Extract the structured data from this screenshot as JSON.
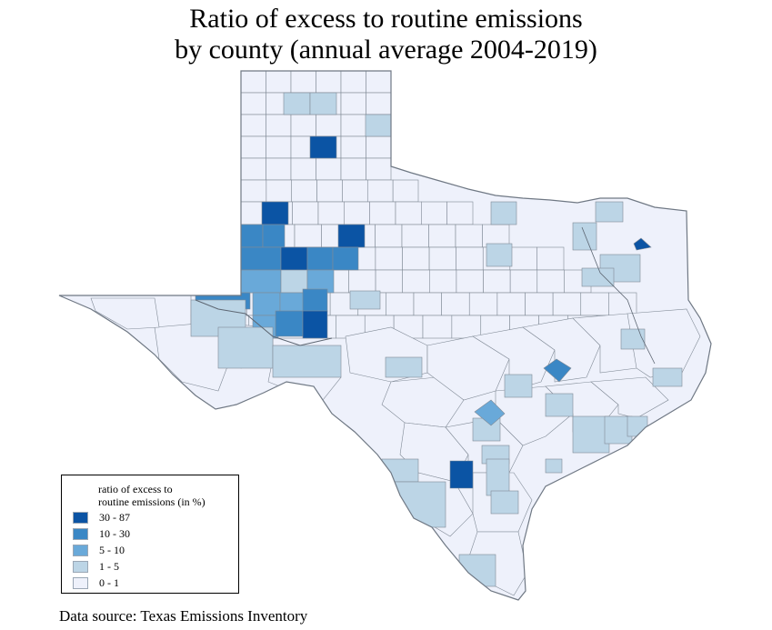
{
  "title": {
    "line1": "Ratio of excess to routine emissions",
    "line2": "by county (annual average 2004-2019)"
  },
  "legend": {
    "title_line1": "ratio of excess to",
    "title_line2": "routine emissions (in %)",
    "items": [
      {
        "label": "30 - 87",
        "color": "#0b54a4"
      },
      {
        "label": "10 - 30",
        "color": "#3a87c5"
      },
      {
        "label": "5 - 10",
        "color": "#69a9d9"
      },
      {
        "label": "1 - 5",
        "color": "#bcd5e6"
      },
      {
        "label": "0 - 1",
        "color": "#eef1fb"
      }
    ]
  },
  "colors": {
    "border": "#808a96",
    "background": "#ffffff"
  },
  "source": "Data source: Texas Emissions Inventory"
}
